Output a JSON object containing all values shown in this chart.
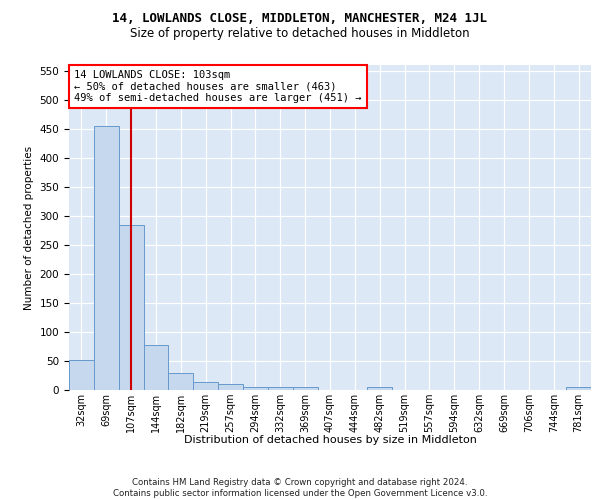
{
  "title": "14, LOWLANDS CLOSE, MIDDLETON, MANCHESTER, M24 1JL",
  "subtitle": "Size of property relative to detached houses in Middleton",
  "xlabel": "Distribution of detached houses by size in Middleton",
  "ylabel": "Number of detached properties",
  "bar_values": [
    52,
    455,
    285,
    78,
    30,
    14,
    10,
    5,
    6,
    5,
    0,
    0,
    5,
    0,
    0,
    0,
    0,
    0,
    0,
    0,
    5
  ],
  "all_labels": [
    "32sqm",
    "69sqm",
    "107sqm",
    "144sqm",
    "182sqm",
    "219sqm",
    "257sqm",
    "294sqm",
    "332sqm",
    "369sqm",
    "407sqm",
    "444sqm",
    "482sqm",
    "519sqm",
    "557sqm",
    "594sqm",
    "632sqm",
    "669sqm",
    "706sqm",
    "744sqm",
    "781sqm"
  ],
  "bar_color": "#c5d8ee",
  "bar_edge_color": "#6699cc",
  "vline_x_index": 2,
  "vline_color": "#cc0000",
  "annotation_box_text": "14 LOWLANDS CLOSE: 103sqm\n← 50% of detached houses are smaller (463)\n49% of semi-detached houses are larger (451) →",
  "annotation_box_color": "white",
  "annotation_box_edge_color": "red",
  "ylim": [
    0,
    560
  ],
  "yticks": [
    0,
    50,
    100,
    150,
    200,
    250,
    300,
    350,
    400,
    450,
    500,
    550
  ],
  "footer_line1": "Contains HM Land Registry data © Crown copyright and database right 2024.",
  "footer_line2": "Contains public sector information licensed under the Open Government Licence v3.0.",
  "plot_bg_color": "#dce8f5",
  "grid_color": "white",
  "title_fontsize": 9,
  "subtitle_fontsize": 8.5
}
